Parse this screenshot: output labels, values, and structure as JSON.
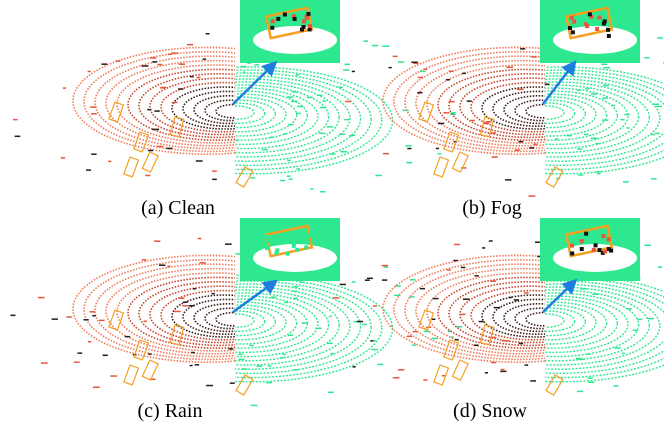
{
  "panels": [
    {
      "caption": "(a) Clean"
    },
    {
      "caption": "(b) Fog"
    },
    {
      "caption": "(c) Rain"
    },
    {
      "caption": "(d) Snow"
    }
  ]
}
